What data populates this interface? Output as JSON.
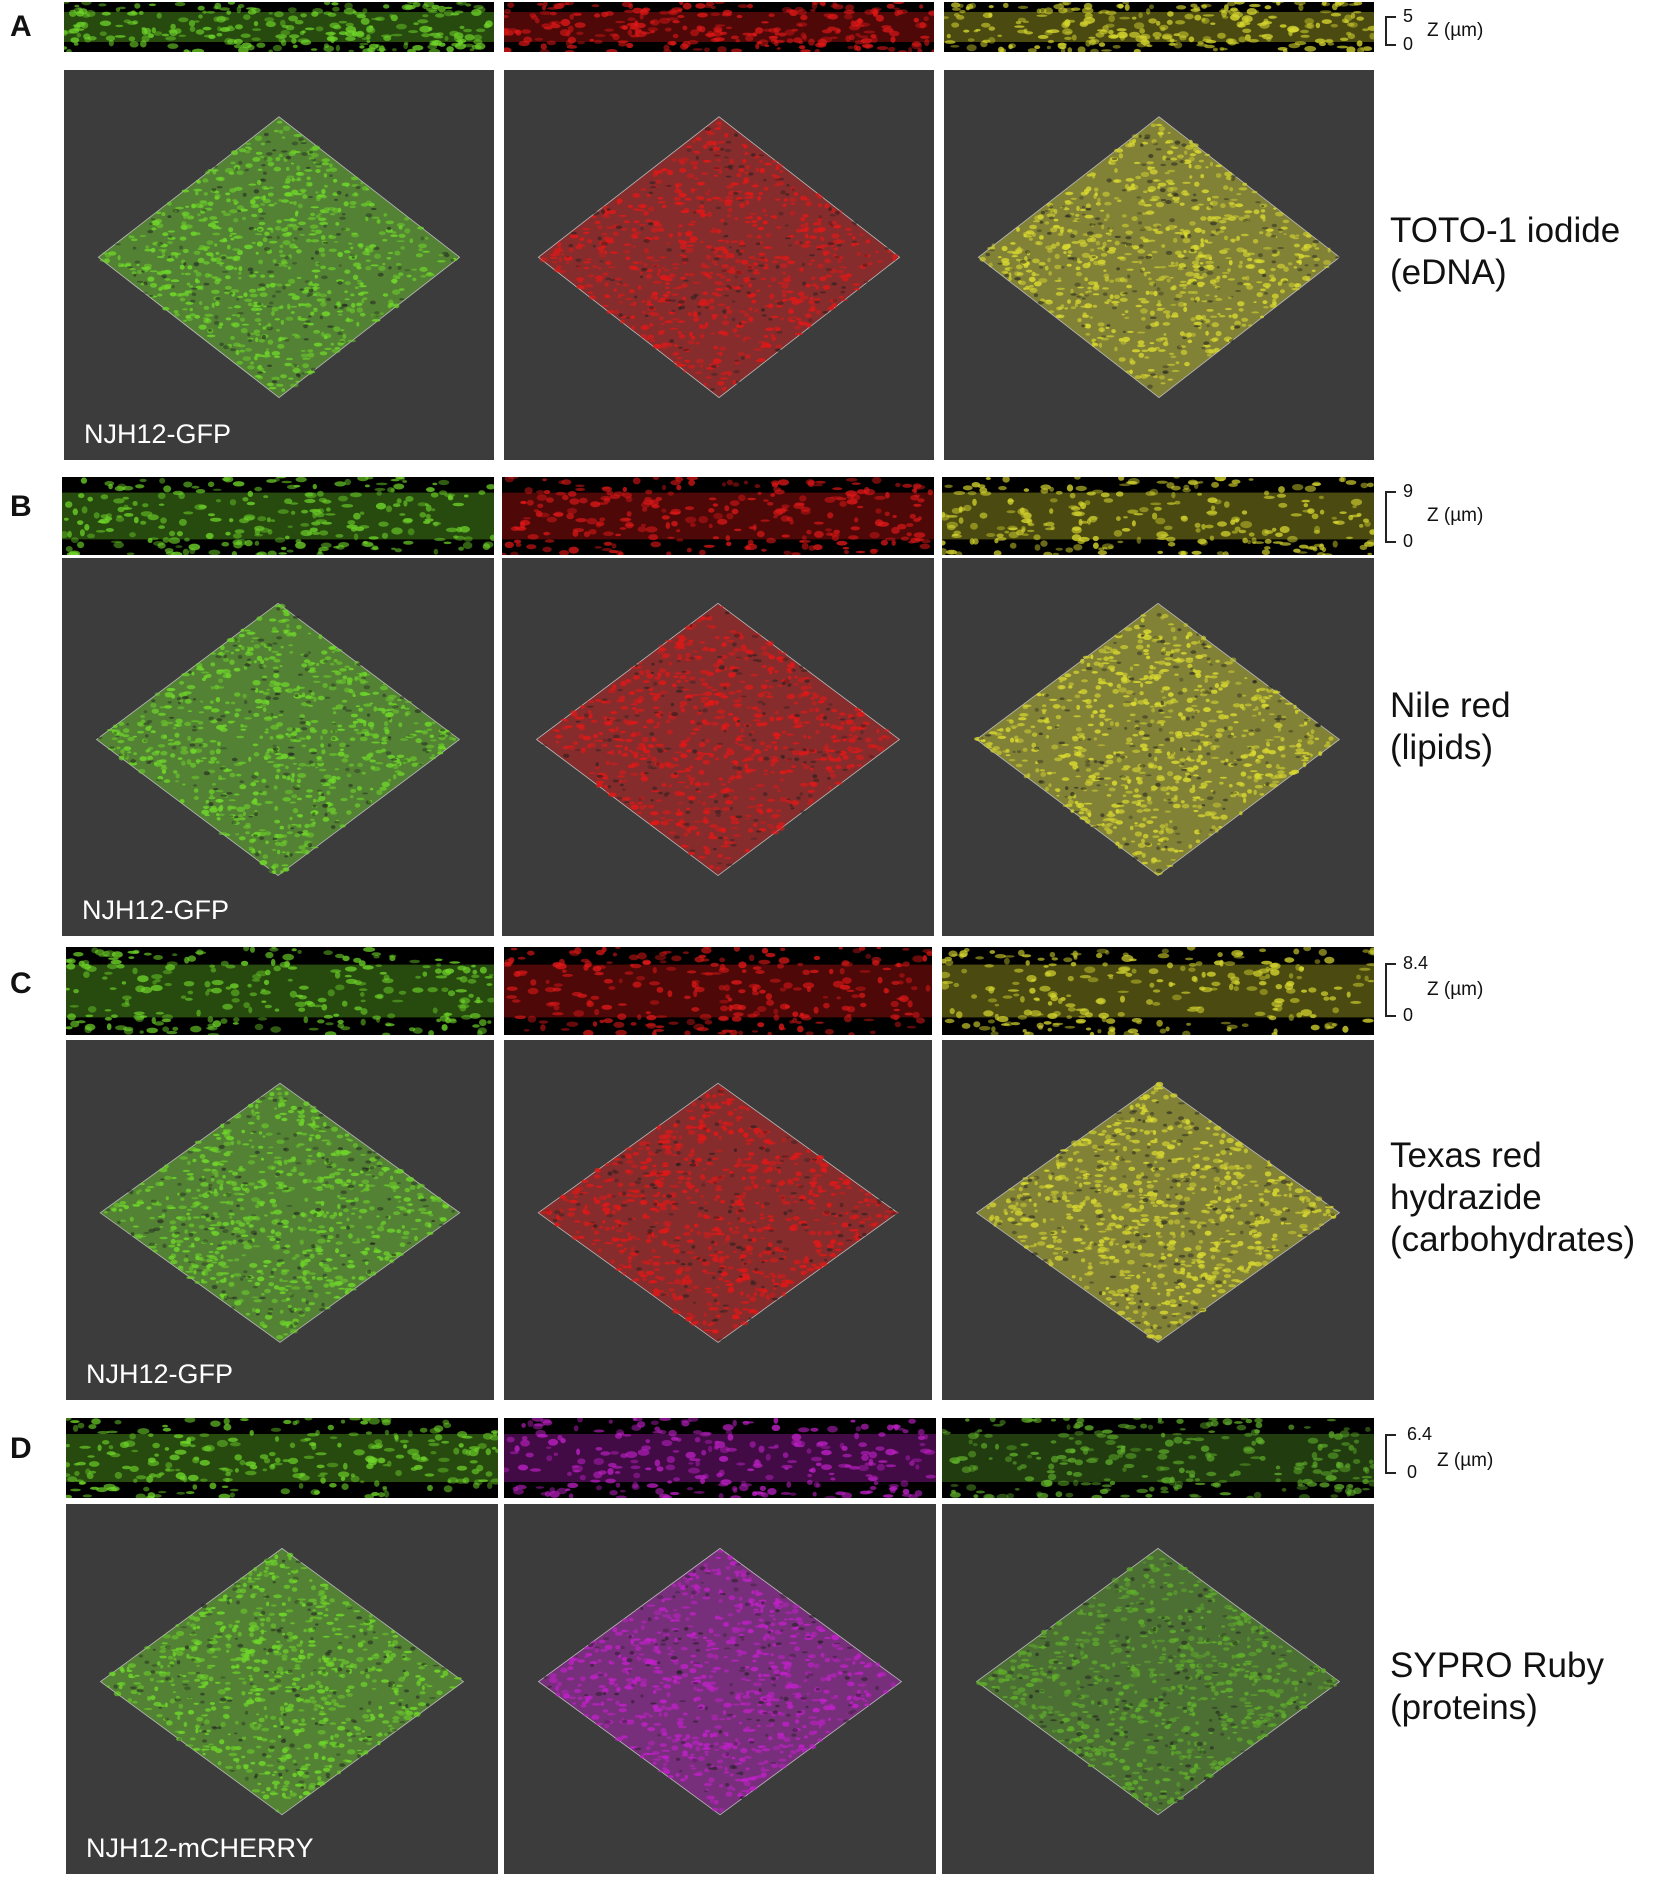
{
  "panels": [
    {
      "letter": "A",
      "z_max": "5",
      "z_min": "0",
      "z_label": "Z (µm)",
      "strain": "NJH12-GFP",
      "stain_lines": [
        "TOTO-1 iodide",
        "(eDNA)"
      ],
      "channels": [
        "green",
        "red",
        "merge-yellow"
      ]
    },
    {
      "letter": "B",
      "z_max": "9",
      "z_min": "0",
      "z_label": "Z (µm)",
      "strain": "NJH12-GFP",
      "stain_lines": [
        "Nile red",
        "(lipids)"
      ],
      "channels": [
        "green",
        "red",
        "merge-yellow"
      ]
    },
    {
      "letter": "C",
      "z_max": "8.4",
      "z_min": "0",
      "z_label": "Z (µm)",
      "strain": "NJH12-GFP",
      "stain_lines": [
        "Texas red",
        "hydrazide",
        "(carbohydrates)"
      ],
      "channels": [
        "green",
        "red",
        "merge-yellow"
      ]
    },
    {
      "letter": "D",
      "z_max": "6.4",
      "z_min": "0",
      "z_label": "Z (µm)",
      "strain": "NJH12-mCHERRY",
      "stain_lines": [
        "SYPRO Ruby",
        "(proteins)"
      ],
      "channels": [
        "green",
        "magenta",
        "merge-green"
      ]
    }
  ],
  "colors": {
    "green": "#6fd62a",
    "red": "#e01818",
    "merge-yellow": "#d8d830",
    "magenta": "#c020c8",
    "merge-green": "#5fae2a",
    "tile_background": "#3c3c3c",
    "strip_background": "#000000"
  }
}
